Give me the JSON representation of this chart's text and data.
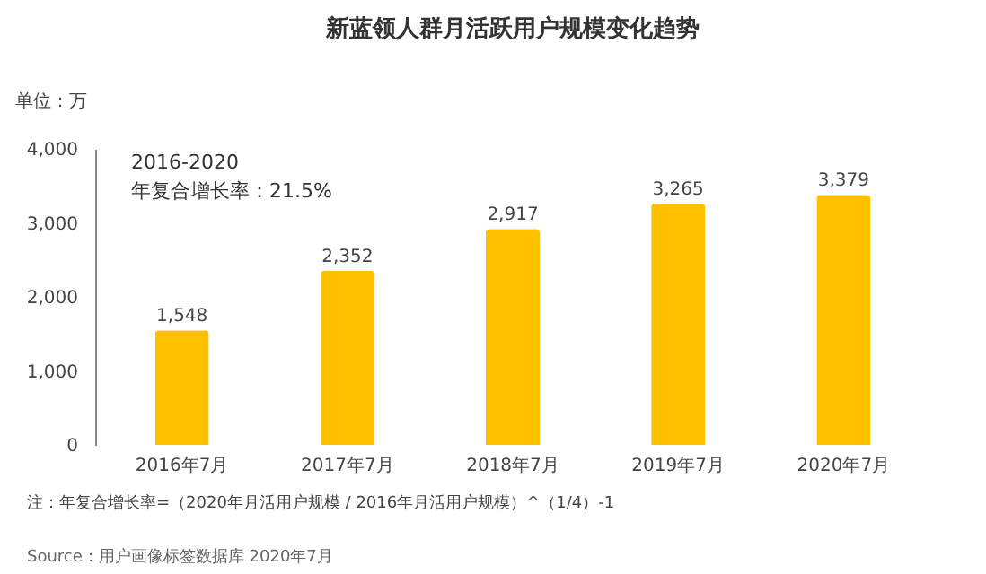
{
  "chart_data": {
    "type": "bar",
    "title": "新蓝领人群月活跃用户规模变化趋势",
    "ylabel": "单位：万",
    "categories": [
      "2016年7月",
      "2017年7月",
      "2018年7月",
      "2019年7月",
      "2020年7月"
    ],
    "values": [
      1548,
      2352,
      2917,
      3265,
      3379
    ],
    "color": "#ffc000",
    "ylim": [
      0,
      4000
    ],
    "yticks": [
      {
        "value": 0,
        "label": "0"
      },
      {
        "value": 1000,
        "label": "1,000"
      },
      {
        "value": 2000,
        "label": "2,000"
      },
      {
        "value": 3000,
        "label": "3,000"
      },
      {
        "value": 4000,
        "label": "4,000"
      }
    ],
    "grid": false,
    "value_labels": [
      "1,548",
      "2,352",
      "2,917",
      "3,265",
      "3,379"
    ],
    "annotations": [
      "2016-2020",
      "年复合增长率：21.5%",
      "注：年复合增长率=（2020年月活用户规模 / 2016年月活用户规模）^（1/4）-1",
      "Source：用户画像标签数据库 2020年7月"
    ]
  }
}
